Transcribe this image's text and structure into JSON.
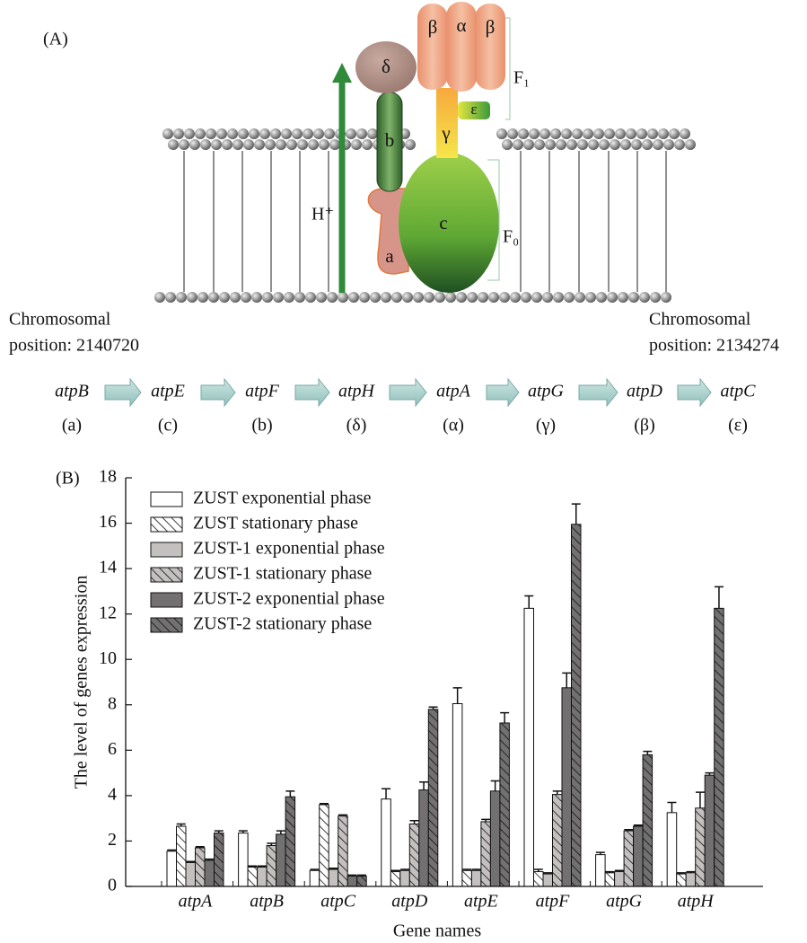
{
  "panel_a": {
    "label": "(A)",
    "complex_labels": {
      "beta_left": "β",
      "alpha": "α",
      "beta_right": "β",
      "delta": "δ",
      "epsilon": "ε",
      "gamma": "γ",
      "b": "b",
      "c": "c",
      "a": "a"
    },
    "proton": "H⁺",
    "f1": "F₁",
    "f0": "F₀",
    "left_position": [
      "Chromosomal",
      "position: 2140720"
    ],
    "right_position": [
      "Chromosomal",
      "position: 2134274"
    ],
    "genes": [
      {
        "name": "atpB",
        "subunit": "(a)"
      },
      {
        "name": "atpE",
        "subunit": "(c)"
      },
      {
        "name": "atpF",
        "subunit": "(b)"
      },
      {
        "name": "atpH",
        "subunit": "(δ)"
      },
      {
        "name": "atpA",
        "subunit": "(α)"
      },
      {
        "name": "atpG",
        "subunit": "(γ)"
      },
      {
        "name": "atpD",
        "subunit": "(β)"
      },
      {
        "name": "atpC",
        "subunit": "(ε)"
      }
    ]
  },
  "chart_data": {
    "type": "bar",
    "panel_label": "(B)",
    "y_label": "The level of genes expression",
    "x_label": "Gene names",
    "categories": [
      "atpA",
      "atpB",
      "atpC",
      "atpD",
      "atpE",
      "atpF",
      "atpG",
      "atpH"
    ],
    "ylim": [
      0,
      18
    ],
    "yticks": [
      0,
      2,
      4,
      6,
      8,
      10,
      12,
      14,
      16,
      18
    ],
    "series": [
      {
        "name": "ZUST exponential phase",
        "color": "#ffffff",
        "hatch": false,
        "values": [
          1.55,
          2.35,
          0.7,
          3.85,
          8.05,
          12.25,
          1.4,
          3.25
        ],
        "errors": [
          0.05,
          0.1,
          0.05,
          0.45,
          0.7,
          0.55,
          0.1,
          0.45
        ]
      },
      {
        "name": "ZUST stationary phase",
        "color": "#ffffff",
        "hatch": true,
        "values": [
          2.65,
          0.85,
          3.6,
          0.65,
          0.7,
          0.65,
          0.6,
          0.55
        ],
        "errors": [
          0.1,
          0.05,
          0.05,
          0.05,
          0.05,
          0.1,
          0.05,
          0.05
        ]
      },
      {
        "name": "ZUST-1 exponential phase",
        "color": "#c4c0c0",
        "hatch": false,
        "values": [
          1.05,
          0.85,
          0.75,
          0.7,
          0.7,
          0.55,
          0.65,
          0.6
        ],
        "errors": [
          0.05,
          0.05,
          0.05,
          0.05,
          0.05,
          0.05,
          0.05,
          0.05
        ]
      },
      {
        "name": "ZUST-1 stationary phase",
        "color": "#c4c0c0",
        "hatch": true,
        "values": [
          1.7,
          1.8,
          3.1,
          2.75,
          2.85,
          4.05,
          2.45,
          3.45
        ],
        "errors": [
          0.05,
          0.1,
          0.05,
          0.15,
          0.1,
          0.15,
          0.05,
          0.7
        ]
      },
      {
        "name": "ZUST-2 exponential phase",
        "color": "#727070",
        "hatch": false,
        "values": [
          1.15,
          2.3,
          0.45,
          4.25,
          4.2,
          8.75,
          2.65,
          4.9
        ],
        "errors": [
          0.05,
          0.15,
          0.05,
          0.35,
          0.45,
          0.65,
          0.05,
          0.1
        ]
      },
      {
        "name": "ZUST-2 stationary phase",
        "color": "#727070",
        "hatch": true,
        "values": [
          2.35,
          3.95,
          0.45,
          7.8,
          7.2,
          15.95,
          5.8,
          12.25
        ],
        "errors": [
          0.1,
          0.25,
          0.05,
          0.1,
          0.45,
          0.9,
          0.15,
          0.95
        ]
      }
    ]
  }
}
